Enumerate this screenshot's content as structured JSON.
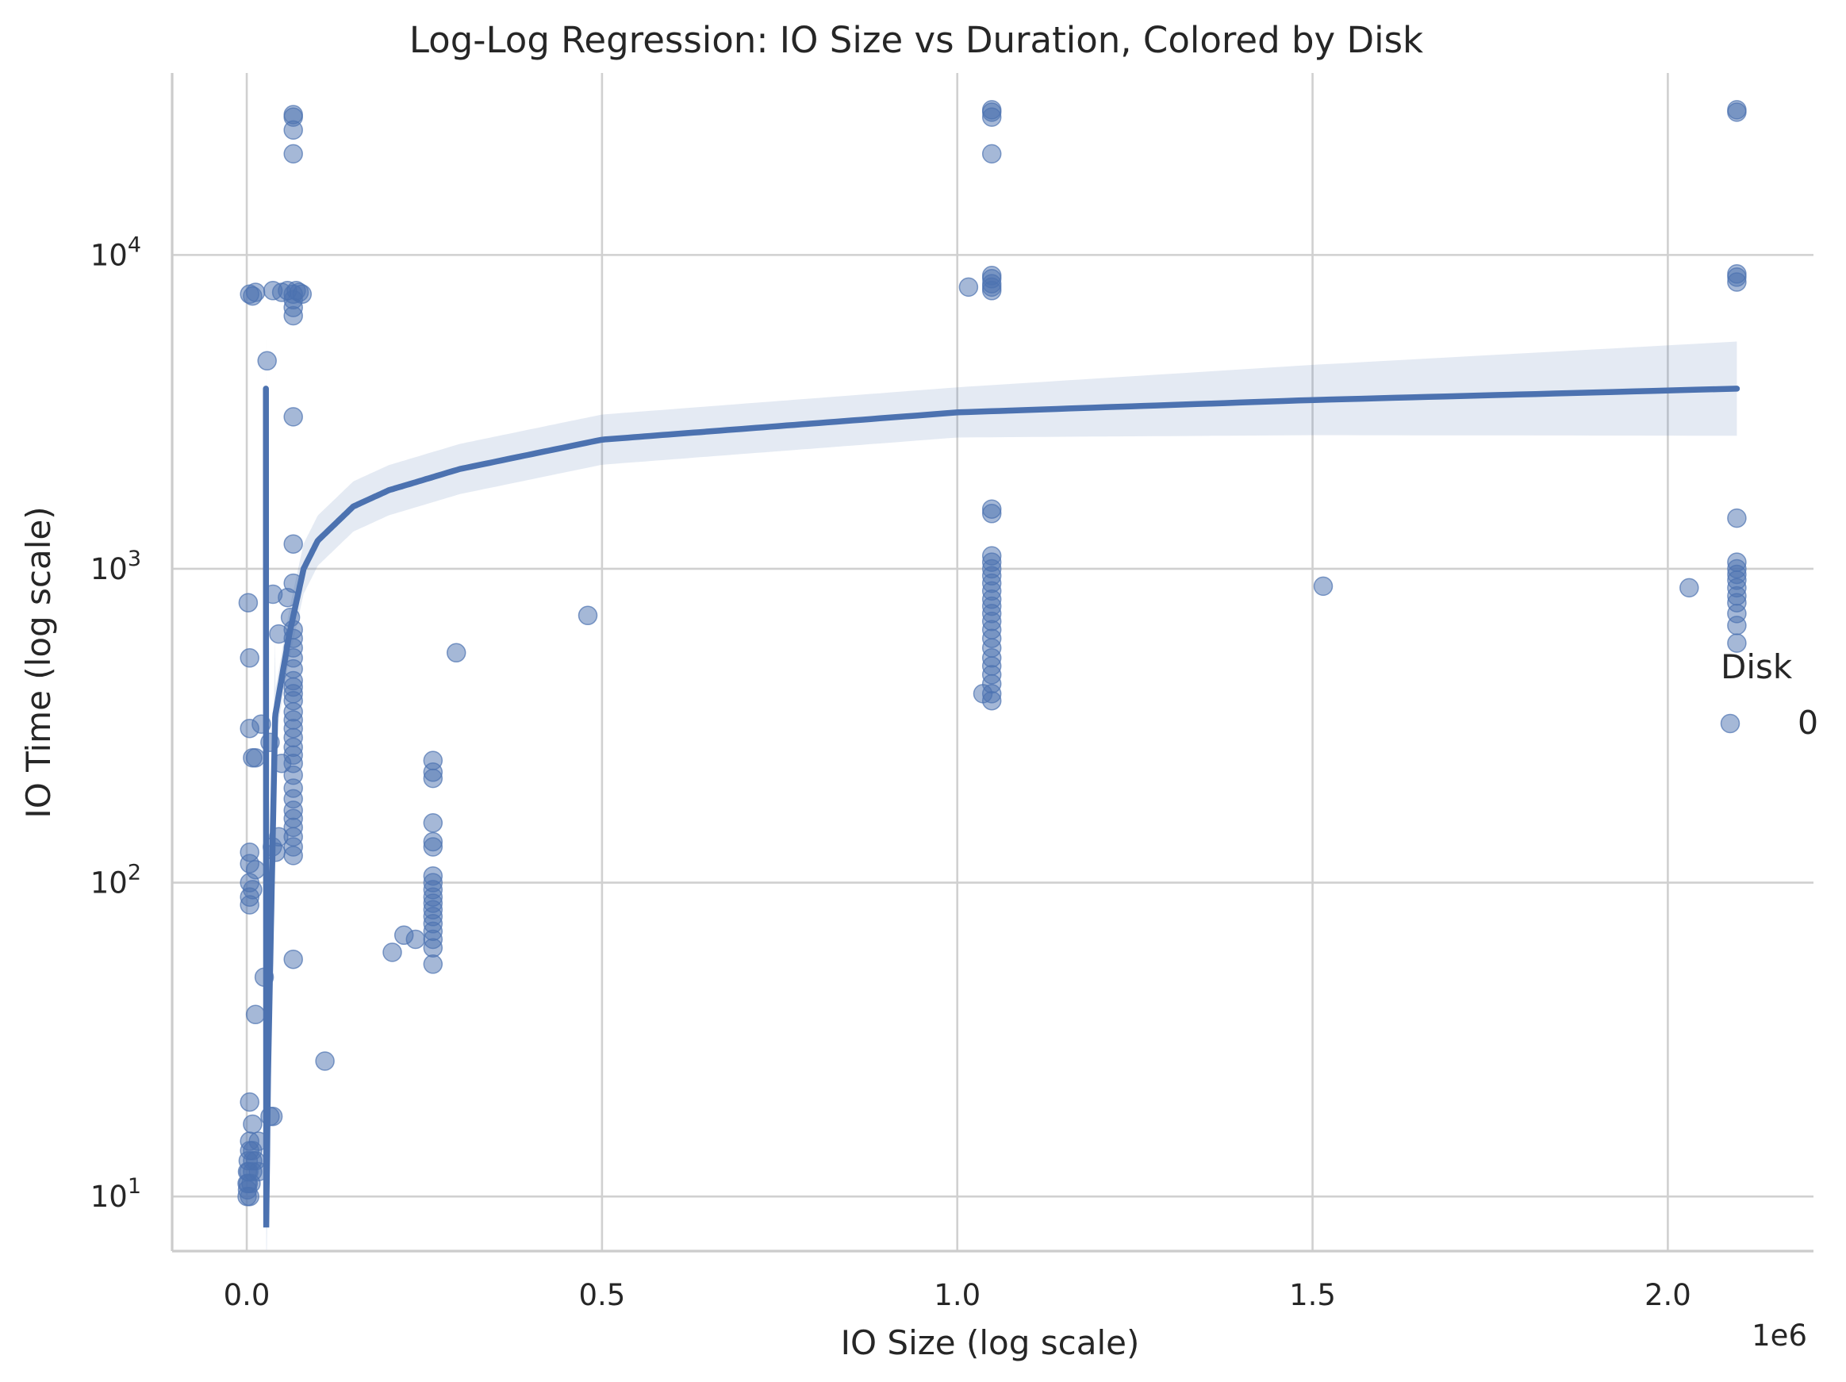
{
  "chart_data": {
    "type": "scatter",
    "title": "Log-Log Regression: IO Size vs Duration, Colored by Disk",
    "xlabel": "IO Size (log scale)",
    "ylabel": "IO Time (log scale)",
    "x_offset_label": "1e6",
    "x_scale": "linear",
    "y_scale": "log",
    "xlim": [
      -105000,
      2205000
    ],
    "ylim": [
      6.7,
      38000
    ],
    "grid": true,
    "x_ticks": [
      {
        "value": 0,
        "label": "0.0"
      },
      {
        "value": 500000,
        "label": "0.5"
      },
      {
        "value": 1000000,
        "label": "1.0"
      },
      {
        "value": 1500000,
        "label": "1.5"
      },
      {
        "value": 2000000,
        "label": "2.0"
      }
    ],
    "y_ticks": [
      {
        "value": 10,
        "base": "10",
        "exp": "1"
      },
      {
        "value": 100,
        "base": "10",
        "exp": "2"
      },
      {
        "value": 1000,
        "base": "10",
        "exp": "3"
      },
      {
        "value": 10000,
        "base": "10",
        "exp": "4"
      }
    ],
    "legend": {
      "title": "Disk",
      "position": "right",
      "entries": [
        {
          "label": "0",
          "color": "#4c72b0"
        }
      ]
    },
    "series": [
      {
        "name": "0",
        "color": "#4c72b0",
        "points": [
          [
            512,
            10
          ],
          [
            512,
            11
          ],
          [
            1024,
            10.5
          ],
          [
            1024,
            12
          ],
          [
            2048,
            11
          ],
          [
            2048,
            13
          ],
          [
            3000,
            12
          ],
          [
            4096,
            10
          ],
          [
            4096,
            14
          ],
          [
            4096,
            15
          ],
          [
            6000,
            11
          ],
          [
            8192,
            12
          ],
          [
            8192,
            13
          ],
          [
            8192,
            14
          ],
          [
            12288,
            13
          ],
          [
            16384,
            15
          ],
          [
            16384,
            12
          ],
          [
            8192,
            17
          ],
          [
            4096,
            20
          ],
          [
            12288,
            38
          ],
          [
            4096,
            85
          ],
          [
            4096,
            90
          ],
          [
            4096,
            100
          ],
          [
            4096,
            115
          ],
          [
            4096,
            125
          ],
          [
            8192,
            95
          ],
          [
            12288,
            110
          ],
          [
            4096,
            310
          ],
          [
            4096,
            520
          ],
          [
            2048,
            780
          ],
          [
            8192,
            250
          ],
          [
            12288,
            250
          ],
          [
            20480,
            320
          ],
          [
            24576,
            50
          ],
          [
            32768,
            280
          ],
          [
            36000,
            130
          ],
          [
            40960,
            125
          ],
          [
            45056,
            140
          ],
          [
            49152,
            240
          ],
          [
            32768,
            18
          ],
          [
            36864,
            18
          ],
          [
            36864,
            830
          ],
          [
            45056,
            620
          ],
          [
            65536,
            640
          ],
          [
            61440,
            700
          ],
          [
            57344,
            810
          ],
          [
            65536,
            440
          ],
          [
            65536,
            420
          ],
          [
            65536,
            400
          ],
          [
            65536,
            380
          ],
          [
            65536,
            350
          ],
          [
            65536,
            330
          ],
          [
            65536,
            310
          ],
          [
            65536,
            290
          ],
          [
            65536,
            270
          ],
          [
            65536,
            255
          ],
          [
            65536,
            240
          ],
          [
            65536,
            220
          ],
          [
            65536,
            200
          ],
          [
            65536,
            185
          ],
          [
            65536,
            170
          ],
          [
            65536,
            160
          ],
          [
            65536,
            150
          ],
          [
            65536,
            140
          ],
          [
            65536,
            130
          ],
          [
            65536,
            122
          ],
          [
            65536,
            57
          ],
          [
            65536,
            480
          ],
          [
            65536,
            520
          ],
          [
            65536,
            560
          ],
          [
            65536,
            600
          ],
          [
            65536,
            900
          ],
          [
            65536,
            1200
          ],
          [
            65536,
            3050
          ],
          [
            4096,
            7500
          ],
          [
            8192,
            7400
          ],
          [
            12288,
            7600
          ],
          [
            36864,
            7700
          ],
          [
            49152,
            7600
          ],
          [
            57344,
            7700
          ],
          [
            65536,
            7500
          ],
          [
            65536,
            7200
          ],
          [
            65536,
            6800
          ],
          [
            65536,
            6400
          ],
          [
            69632,
            7700
          ],
          [
            73728,
            7600
          ],
          [
            77824,
            7500
          ],
          [
            28672,
            4600
          ],
          [
            65536,
            28000
          ],
          [
            65536,
            27500
          ],
          [
            65536,
            25000
          ],
          [
            65536,
            21000
          ],
          [
            204800,
            60
          ],
          [
            221184,
            68
          ],
          [
            237568,
            66
          ],
          [
            262144,
            55
          ],
          [
            262144,
            62
          ],
          [
            262144,
            66
          ],
          [
            262144,
            70
          ],
          [
            262144,
            74
          ],
          [
            262144,
            78
          ],
          [
            262144,
            82
          ],
          [
            262144,
            86
          ],
          [
            262144,
            90
          ],
          [
            262144,
            95
          ],
          [
            262144,
            100
          ],
          [
            262144,
            105
          ],
          [
            262144,
            130
          ],
          [
            262144,
            135
          ],
          [
            262144,
            155
          ],
          [
            262144,
            215
          ],
          [
            262144,
            225
          ],
          [
            262144,
            245
          ],
          [
            110000,
            27
          ],
          [
            294912,
            540
          ],
          [
            480000,
            710
          ],
          [
            1048576,
            380
          ],
          [
            1048576,
            400
          ],
          [
            1048576,
            430
          ],
          [
            1048576,
            460
          ],
          [
            1048576,
            490
          ],
          [
            1048576,
            520
          ],
          [
            1048576,
            560
          ],
          [
            1048576,
            600
          ],
          [
            1048576,
            640
          ],
          [
            1048576,
            680
          ],
          [
            1048576,
            720
          ],
          [
            1048576,
            760
          ],
          [
            1048576,
            800
          ],
          [
            1048576,
            850
          ],
          [
            1048576,
            900
          ],
          [
            1048576,
            950
          ],
          [
            1048576,
            1000
          ],
          [
            1048576,
            1050
          ],
          [
            1048576,
            1100
          ],
          [
            1048576,
            1500
          ],
          [
            1048576,
            1550
          ],
          [
            1036000,
            400
          ],
          [
            1015808,
            7900
          ],
          [
            1048576,
            7700
          ],
          [
            1048576,
            7900
          ],
          [
            1048576,
            8100
          ],
          [
            1048576,
            8400
          ],
          [
            1048576,
            8600
          ],
          [
            1048576,
            21000
          ],
          [
            1048576,
            27500
          ],
          [
            1048576,
            28500
          ],
          [
            1048576,
            29000
          ],
          [
            1515000,
            880
          ],
          [
            2030000,
            870
          ],
          [
            2097152,
            580
          ],
          [
            2097152,
            660
          ],
          [
            2097152,
            720
          ],
          [
            2097152,
            780
          ],
          [
            2097152,
            820
          ],
          [
            2097152,
            870
          ],
          [
            2097152,
            920
          ],
          [
            2097152,
            960
          ],
          [
            2097152,
            1000
          ],
          [
            2097152,
            1050
          ],
          [
            2097152,
            1450
          ],
          [
            2097152,
            8200
          ],
          [
            2097152,
            8500
          ],
          [
            2097152,
            8700
          ],
          [
            2097152,
            28500
          ],
          [
            2097152,
            29000
          ]
        ]
      }
    ],
    "regression": {
      "model": "y = a + b*ln(x)",
      "x_range": [
        27000,
        2097152
      ],
      "fit": [
        [
          27000,
          6.7
        ],
        [
          30000,
          25
        ],
        [
          40000,
          340
        ],
        [
          60000,
          620
        ],
        [
          80000,
          1000
        ],
        [
          100000,
          1230
        ],
        [
          150000,
          1580
        ],
        [
          200000,
          1780
        ],
        [
          300000,
          2080
        ],
        [
          500000,
          2580
        ],
        [
          1000000,
          3150
        ],
        [
          1500000,
          3450
        ],
        [
          2097152,
          3750
        ]
      ],
      "ci_width_log10": [
        0.25,
        0.08,
        0.15
      ]
    }
  }
}
